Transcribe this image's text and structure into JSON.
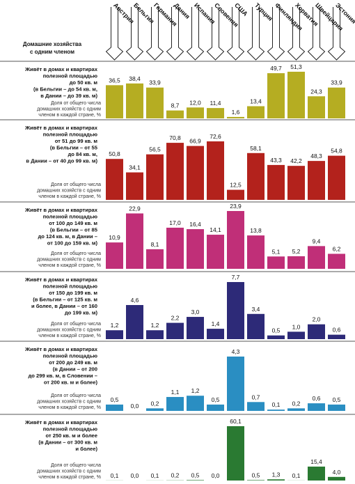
{
  "legend_label": [
    "Домашние хозяйства",
    "с одним членом"
  ],
  "countries": [
    "Австрия",
    "Бельгия",
    "Германия",
    "Дания",
    "Испания",
    "Словения",
    "США",
    "Турция",
    "Финляндия",
    "Хорватия",
    "Швейцария",
    "Эстония"
  ],
  "chart_data": [
    {
      "type": "bar",
      "color": "#b5ad22",
      "title": [
        "Живёт в домах и квартирах",
        "полезной площадью",
        "до 50 кв. м",
        "(в Бельгии – до 54 кв. м,",
        "в Дании – до 39 кв. м)"
      ],
      "note": [
        "Доля от общего числа",
        "домашних хозяйств с одним",
        "членом в каждой стране, %"
      ],
      "values": [
        36.5,
        38.4,
        33.9,
        8.7,
        12.0,
        11.4,
        1.6,
        13.4,
        49.7,
        51.3,
        24.3,
        33.9
      ],
      "value_labels": [
        "36,5",
        "38,4",
        "33,9",
        "8,7",
        "12,0",
        "11,4",
        "1,6",
        "13,4",
        "49,7",
        "51,3",
        "24,3",
        "33,9"
      ]
    },
    {
      "type": "bar",
      "color": "#b3221c",
      "title": [
        "Живёт в домах и квартирах",
        "полезной площадью",
        "от 51 до 99 кв. м",
        "(в Бельгии – от 55",
        "до 84 кв. м,",
        "в Дании – от 40 до 99 кв. м)"
      ],
      "note": [
        "Доля от общего числа",
        "домашних хозяйств с одним",
        "членом в каждой стране, %"
      ],
      "values": [
        50.8,
        34.1,
        56.5,
        70.8,
        66.9,
        72.6,
        12.5,
        58.1,
        43.3,
        42.2,
        48.3,
        54.8
      ],
      "value_labels": [
        "50,8",
        "34,1",
        "56,5",
        "70,8",
        "66,9",
        "72,6",
        "12,5",
        "58,1",
        "43,3",
        "42,2",
        "48,3",
        "54,8"
      ]
    },
    {
      "type": "bar",
      "color": "#c02f78",
      "title": [
        "Живёт в домах и квартирах",
        "полезной площадью",
        "от 100 до 149 кв. м",
        "(в Бельгии – от 85",
        "до 124 кв. м, в Дании –",
        "от 100 до 159 кв. м)"
      ],
      "note": [
        "Доля от общего числа",
        "домашних хозяйств с одним",
        "членом в каждой стране, %"
      ],
      "values": [
        10.9,
        22.9,
        8.1,
        17.0,
        16.4,
        14.1,
        23.9,
        13.8,
        5.1,
        5.2,
        9.4,
        6.2
      ],
      "value_labels": [
        "10,9",
        "22,9",
        "8,1",
        "17,0",
        "16,4",
        "14,1",
        "23,9",
        "13,8",
        "5,1",
        "5,2",
        "9,4",
        "6,2"
      ]
    },
    {
      "type": "bar",
      "color": "#2d2a78",
      "title": [
        "Живёт в домах и квартирах",
        "полезной площадью",
        "от 150 до 199 кв. м",
        "(в Бельгии – от 125 кв. м",
        "и более, в Дании – от 160",
        "до 199 кв. м)"
      ],
      "note": [
        "Доля от общего числа",
        "домашних хозяйств с одним",
        "членом в каждой стране, %"
      ],
      "values": [
        1.2,
        4.6,
        1.2,
        2.2,
        3.0,
        1.4,
        7.7,
        3.4,
        0.5,
        1.0,
        2.0,
        0.6
      ],
      "value_labels": [
        "1,2",
        "4,6",
        "1,2",
        "2,2",
        "3,0",
        "1,4",
        "7,7",
        "3,4",
        "0,5",
        "1,0",
        "2,0",
        "0,6"
      ]
    },
    {
      "type": "bar",
      "color": "#2a8ec2",
      "title": [
        "Живёт в домах и квартирах",
        "полезной площадью",
        "от 200 до 249 кв. м",
        "(в Дании – от 200",
        "до 299 кв. м, в Словении –",
        "от 200 кв. м и более)"
      ],
      "note": [
        "Доля от общего числа",
        "домашних хозяйств с одним",
        "членом в каждой стране, %"
      ],
      "values": [
        0.5,
        0.0,
        0.2,
        1.1,
        1.2,
        0.5,
        4.3,
        0.7,
        0.1,
        0.2,
        0.6,
        0.5
      ],
      "value_labels": [
        "0,5",
        "0,0",
        "0,2",
        "1,1",
        "1,2",
        "0,5",
        "4,3",
        "0,7",
        "0,1",
        "0,2",
        "0,6",
        "0,5"
      ]
    },
    {
      "type": "bar",
      "color": "#2a7a32",
      "title": [
        "Живёт в домах и квартирах",
        "полезной площадью",
        "от 250 кв. м и более",
        "(в Дании – от 300 кв. м",
        "и более)"
      ],
      "note": [
        "Доля от общего числа",
        "домашних хозяйств с одним",
        "членом в каждой стране, %"
      ],
      "values": [
        0.1,
        0.0,
        0.1,
        0.2,
        0.5,
        0.0,
        60.1,
        0.5,
        1.3,
        0.1,
        15.4,
        4.0
      ],
      "value_labels": [
        "0,1",
        "0,0",
        "0,1",
        "0,2",
        "0,5",
        "0,0",
        "60,1",
        "0,5",
        "1,3",
        "0,1",
        "15,4",
        "4,0"
      ]
    }
  ]
}
